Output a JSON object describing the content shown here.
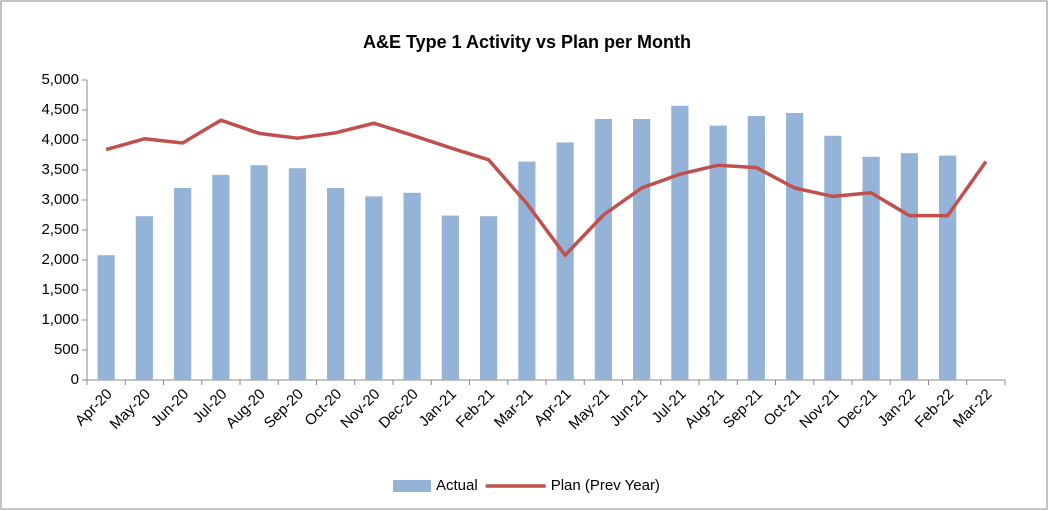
{
  "chart_data": {
    "type": "bar",
    "title": "A&E Type 1 Activity vs Plan per Month",
    "categories": [
      "Apr-20",
      "May-20",
      "Jun-20",
      "Jul-20",
      "Aug-20",
      "Sep-20",
      "Oct-20",
      "Nov-20",
      "Dec-20",
      "Jan-21",
      "Feb-21",
      "Mar-21",
      "Apr-21",
      "May-21",
      "Jun-21",
      "Jul-21",
      "Aug-21",
      "Sep-21",
      "Oct-21",
      "Nov-21",
      "Dec-21",
      "Jan-22",
      "Feb-22",
      "Mar-22"
    ],
    "series": [
      {
        "name": "Actual",
        "type": "bar",
        "color": "#95b3d7",
        "values": [
          2080,
          2730,
          3200,
          3420,
          3580,
          3530,
          3200,
          3060,
          3120,
          2740,
          2730,
          3640,
          3960,
          4350,
          4350,
          4570,
          4240,
          4400,
          4450,
          4070,
          3720,
          3780,
          3740,
          null
        ]
      },
      {
        "name": "Plan (Prev Year)",
        "type": "line",
        "color": "#c0504d",
        "values": [
          3840,
          4020,
          3950,
          4330,
          4110,
          4030,
          4120,
          4280,
          4080,
          3870,
          3670,
          2940,
          2080,
          2750,
          3200,
          3430,
          3580,
          3540,
          3200,
          3060,
          3120,
          2740,
          2740,
          3640
        ]
      }
    ],
    "ylim": [
      0,
      5000
    ],
    "yticks": [
      0,
      500,
      {
        "value": 1000,
        "label": "1,000"
      },
      {
        "value": 1500,
        "label": "1,500"
      },
      {
        "value": 2000,
        "label": "2,000"
      },
      {
        "value": 2500,
        "label": "2,500"
      },
      {
        "value": 3000,
        "label": "3,000"
      },
      {
        "value": 3500,
        "label": "3,500"
      },
      {
        "value": 4000,
        "label": "4,000"
      },
      {
        "value": 4500,
        "label": "4,500"
      },
      {
        "value": 5000,
        "label": "5,000"
      }
    ],
    "legend": "bottom"
  }
}
